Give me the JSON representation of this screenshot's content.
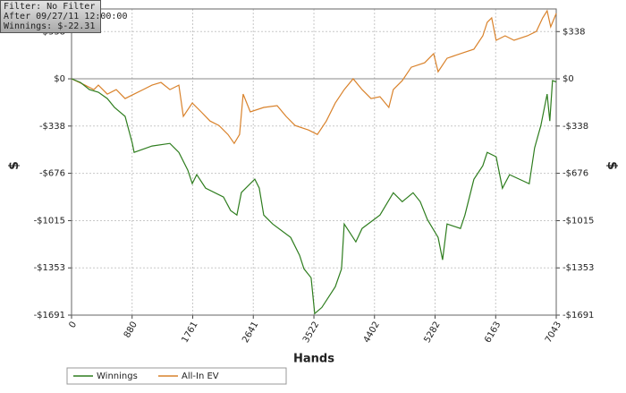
{
  "chart_data": {
    "type": "line",
    "info_box": [
      "Filter: No Filter",
      "After 09/27/11 12:00:00",
      "Winnings: $-22.31"
    ],
    "xlabel": "Hands",
    "ylabel": "$",
    "y2label": "$",
    "xlim": [
      0,
      7043
    ],
    "xticks": [
      0,
      880,
      1761,
      2641,
      3522,
      4402,
      5282,
      6163,
      7043
    ],
    "ylim": [
      -1691,
      500
    ],
    "yticks": [
      {
        "value": 338,
        "label": "$338"
      },
      {
        "value": 0,
        "label": "$0"
      },
      {
        "value": -338,
        "label": "-$338"
      },
      {
        "value": -676,
        "label": "-$676"
      },
      {
        "value": -1015,
        "label": "-$1015"
      },
      {
        "value": -1353,
        "label": "-$1353"
      },
      {
        "value": -1691,
        "label": "-$1691"
      }
    ],
    "grid": true,
    "legend": "bottom-left",
    "series": [
      {
        "name": "Winnings",
        "color": "#2e7d1e",
        "x": [
          0,
          130,
          260,
          390,
          520,
          624,
          779,
          883,
          909,
          1169,
          1429,
          1559,
          1689,
          1754,
          1819,
          1948,
          2208,
          2312,
          2403,
          2468,
          2663,
          2728,
          2793,
          2923,
          3183,
          3313,
          3377,
          3481,
          3533,
          3637,
          3832,
          3923,
          3962,
          4131,
          4222,
          4482,
          4676,
          4806,
          4962,
          5066,
          5170,
          5326,
          5391,
          5456,
          5651,
          5716,
          5846,
          5976,
          6040,
          6170,
          6261,
          6365,
          6651,
          6729,
          6820,
          6911,
          6950,
          6989,
          7043
        ],
        "values": [
          0,
          -26,
          -77,
          -96,
          -141,
          -205,
          -269,
          -462,
          -526,
          -481,
          -462,
          -526,
          -654,
          -750,
          -686,
          -782,
          -846,
          -943,
          -975,
          -814,
          -718,
          -782,
          -975,
          -1039,
          -1135,
          -1263,
          -1360,
          -1424,
          -1680,
          -1636,
          -1488,
          -1360,
          -1039,
          -1167,
          -1071,
          -975,
          -815,
          -879,
          -815,
          -879,
          -1007,
          -1135,
          -1296,
          -1039,
          -1071,
          -975,
          -719,
          -622,
          -526,
          -558,
          -783,
          -686,
          -751,
          -494,
          -334,
          -109,
          -302,
          -13,
          -22
        ]
      },
      {
        "name": "All-In EV",
        "color": "#d9822b",
        "x": [
          0,
          195,
          325,
          390,
          520,
          650,
          779,
          909,
          1039,
          1169,
          1299,
          1429,
          1559,
          1624,
          1754,
          1884,
          2013,
          2143,
          2273,
          2364,
          2442,
          2494,
          2598,
          2793,
          2988,
          3118,
          3248,
          3442,
          3572,
          3702,
          3832,
          3962,
          4092,
          4222,
          4352,
          4482,
          4611,
          4676,
          4806,
          4936,
          5131,
          5261,
          5326,
          5456,
          5651,
          5846,
          5976,
          6040,
          6105,
          6170,
          6300,
          6430,
          6625,
          6755,
          6846,
          6911,
          6963,
          7043
        ],
        "values": [
          0,
          -45,
          -77,
          -45,
          -109,
          -77,
          -141,
          -109,
          -77,
          -45,
          -26,
          -77,
          -45,
          -269,
          -173,
          -237,
          -302,
          -334,
          -398,
          -462,
          -398,
          -109,
          -237,
          -205,
          -192,
          -269,
          -334,
          -366,
          -398,
          -302,
          -173,
          -77,
          0,
          -77,
          -141,
          -128,
          -205,
          -77,
          -13,
          83,
          115,
          180,
          51,
          147,
          180,
          212,
          308,
          404,
          436,
          276,
          308,
          276,
          308,
          340,
          436,
          487,
          372,
          468
        ]
      }
    ]
  }
}
